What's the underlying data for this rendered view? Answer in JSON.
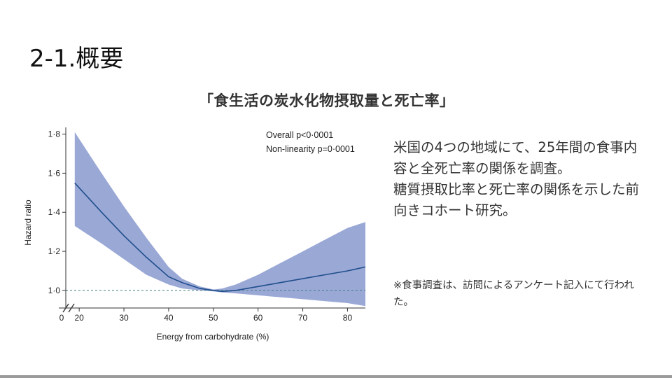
{
  "slide": {
    "title": "2-1.概要",
    "chart_heading": "「食生活の炭水化物摂取量と死亡率」",
    "description": [
      "米国の4つの地域にて、25年間の食事内容と全死亡率の関係を調査。",
      "糖質摂取比率と死亡率の関係を示した前向きコホート研究。"
    ],
    "note": "※食事調査は、訪問によるアンケート記入にて行われた。"
  },
  "chart_data": {
    "type": "line",
    "title": "",
    "xlabel": "Energy from carbohydrate (%)",
    "ylabel": "Hazard ratio",
    "x_ticks": [
      "0",
      "20",
      "30",
      "40",
      "50",
      "60",
      "70",
      "80"
    ],
    "y_ticks": [
      "1·0",
      "1·2",
      "1·4",
      "1·6",
      "1·8"
    ],
    "xlim": [
      17,
      84
    ],
    "ylim": [
      0.91,
      1.82
    ],
    "reference_line": 1.0,
    "annotations": [
      "Overall p<0·0001",
      "Non-linearity p=0·0001"
    ],
    "series": [
      {
        "x": [
          19,
          25,
          30,
          35,
          40,
          43,
          45,
          47,
          50,
          52,
          55,
          60,
          65,
          70,
          75,
          80,
          84
        ],
        "y": [
          1.55,
          1.4,
          1.28,
          1.17,
          1.07,
          1.04,
          1.025,
          1.01,
          1.0,
          0.995,
          1.0,
          1.02,
          1.04,
          1.06,
          1.08,
          1.1,
          1.12
        ],
        "lower": [
          1.33,
          1.24,
          1.16,
          1.08,
          1.03,
          1.01,
          1.005,
          1.0,
          0.995,
          0.99,
          0.985,
          0.975,
          0.965,
          0.955,
          0.945,
          0.935,
          0.92
        ],
        "upper": [
          1.81,
          1.6,
          1.43,
          1.27,
          1.12,
          1.06,
          1.04,
          1.02,
          1.005,
          1.01,
          1.03,
          1.08,
          1.14,
          1.2,
          1.26,
          1.32,
          1.35
        ]
      }
    ],
    "colors": {
      "line": "#1f4e8c",
      "band": "#9aa8d6",
      "reference": "#3f7f7f",
      "axis": "#333333"
    }
  }
}
